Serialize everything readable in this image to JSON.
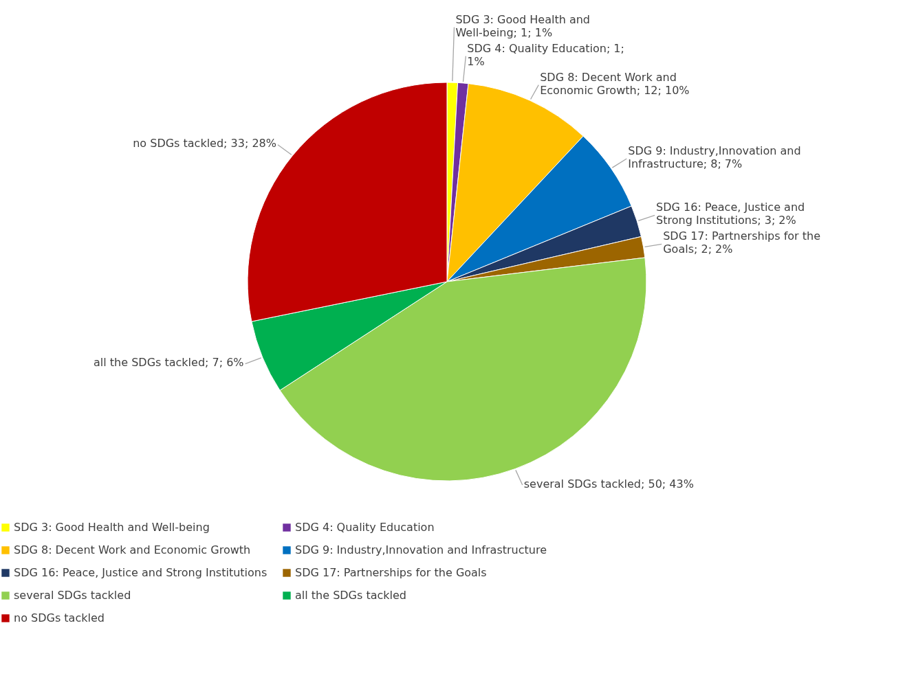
{
  "chart_data": {
    "type": "pie",
    "categories": [
      "SDG 3: Good Health and Well-being",
      "SDG 4: Quality Education",
      "SDG 8: Decent Work and Economic Growth",
      "SDG 9: Industry,Innovation and Infrastructure",
      "SDG 16: Peace, Justice and Strong Institutions",
      "SDG 17: Partnerships for the Goals",
      "several SDGs tackled",
      "all the SDGs tackled",
      "no SDGs tackled"
    ],
    "values": [
      1,
      1,
      12,
      8,
      3,
      2,
      50,
      7,
      33
    ],
    "colors": [
      "#ffff00",
      "#7030a0",
      "#ffc000",
      "#0070c0",
      "#1f3864",
      "#9c6500",
      "#92d050",
      "#00b050",
      "#c00000"
    ],
    "value_labels": [
      "SDG 3: Good Health and Well-being; 1; 1%",
      "SDG 4: Quality Education; 1; 1%",
      "SDG 8: Decent Work and Economic Growth; 12; 10%",
      "SDG 9: Industry,Innovation and Infrastructure; 8; 7%",
      "SDG 16: Peace, Justice and Strong Institutions; 3; 2%",
      "SDG 17: Partnerships for the Goals; 2; 2%",
      "several SDGs tackled; 50; 43%",
      "all the SDGs tackled; 7; 6%",
      "no SDGs tackled; 33; 28%"
    ],
    "legend": "bottom"
  }
}
